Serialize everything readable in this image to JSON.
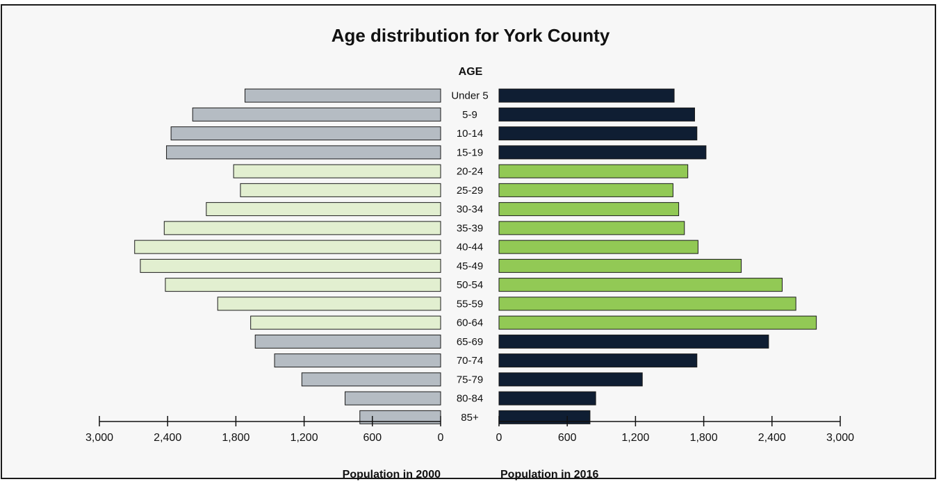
{
  "chart_data": {
    "type": "bar",
    "title": "Age distribution for York County",
    "category_header": "AGE",
    "categories": [
      "Under 5",
      "5-9",
      "10-14",
      "15-19",
      "20-24",
      "25-29",
      "30-34",
      "35-39",
      "40-44",
      "45-49",
      "50-54",
      "55-59",
      "60-64",
      "65-69",
      "70-74",
      "75-79",
      "80-84",
      "85+"
    ],
    "series": [
      {
        "name": "Population in 2000",
        "values": [
          1720,
          2180,
          2370,
          2410,
          1820,
          1760,
          2060,
          2430,
          2690,
          2640,
          2420,
          1960,
          1670,
          1630,
          1460,
          1220,
          840,
          710
        ]
      },
      {
        "name": "Population in 2016",
        "values": [
          1540,
          1720,
          1740,
          1820,
          1660,
          1530,
          1580,
          1630,
          1750,
          2130,
          2490,
          2610,
          2790,
          2370,
          1740,
          1260,
          850,
          800
        ]
      }
    ],
    "left_axis": {
      "label": "Population in 2000",
      "ticks": [
        "3,000",
        "2,400",
        "1,800",
        "1,200",
        "600",
        "0"
      ],
      "range": [
        0,
        3000
      ],
      "reversed": true
    },
    "right_axis": {
      "label": "Population in 2016",
      "ticks": [
        "0",
        "600",
        "1,200",
        "1,800",
        "2,400",
        "3,000"
      ],
      "range": [
        0,
        3000
      ]
    },
    "colors": {
      "left_youth_old": "#b5bcc3",
      "left_working": "#e2efd0",
      "right_youth_old": "#0f1e33",
      "right_working": "#92c955",
      "bar_outline": "#1a1a1a"
    },
    "working_age_groups": [
      "20-24",
      "25-29",
      "30-34",
      "35-39",
      "40-44",
      "45-49",
      "50-54",
      "55-59",
      "60-64"
    ]
  }
}
